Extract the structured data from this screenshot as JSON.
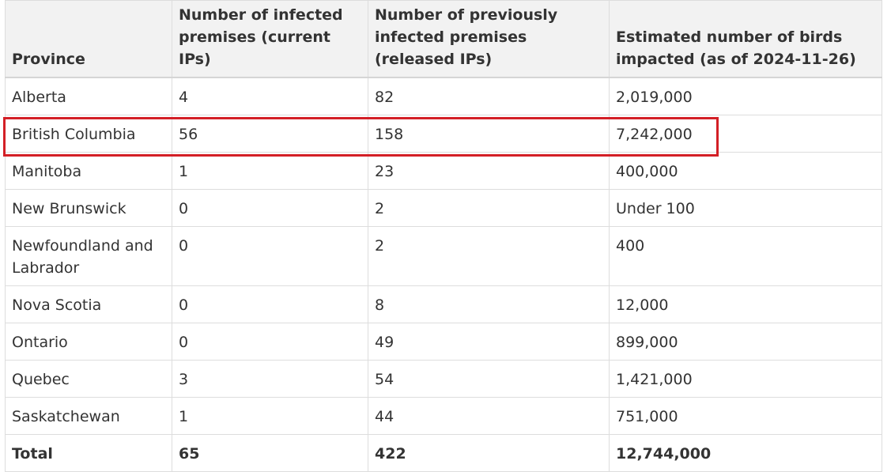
{
  "table": {
    "headers": [
      "Province",
      "Number of infected premises (current IPs)",
      "Number of previously infected premises (released IPs)",
      "Estimated number of birds impacted (as of 2024-11-26)"
    ],
    "rows": [
      [
        "Alberta",
        "4",
        "82",
        "2,019,000"
      ],
      [
        "British Columbia",
        "56",
        "158",
        "7,242,000"
      ],
      [
        "Manitoba",
        "1",
        "23",
        "400,000"
      ],
      [
        "New Brunswick",
        "0",
        "2",
        "Under 100"
      ],
      [
        "Newfoundland and Labrador",
        "0",
        "2",
        "400"
      ],
      [
        "Nova Scotia",
        "0",
        "8",
        "12,000"
      ],
      [
        "Ontario",
        "0",
        "49",
        "899,000"
      ],
      [
        "Quebec",
        "3",
        "54",
        "1,421,000"
      ],
      [
        "Saskatchewan",
        "1",
        "44",
        "751,000"
      ]
    ],
    "total": [
      "Total",
      "65",
      "422",
      "12,744,000"
    ],
    "highlighted_row": "British Columbia",
    "highlight_color": "#d31f26"
  }
}
